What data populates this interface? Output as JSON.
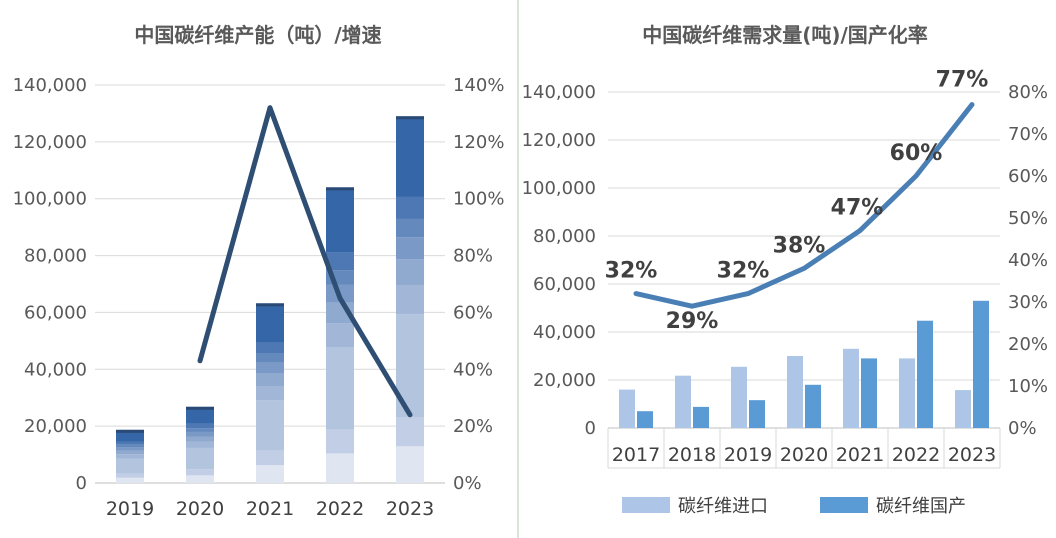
{
  "chart_data": [
    {
      "type": "bar",
      "title": "中国碳纤维产能（吨）/增速",
      "categories": [
        "2019",
        "2020",
        "2021",
        "2022",
        "2023"
      ],
      "series": [
        {
          "values": [
            18700,
            26800,
            63200,
            104000,
            129000
          ],
          "role": "bar-total"
        },
        {
          "values": [
            null,
            43,
            132,
            65,
            24
          ],
          "role": "line",
          "axis": "right"
        }
      ],
      "y_ticks": [
        "0",
        "20,000",
        "40,000",
        "60,000",
        "80,000",
        "100,000",
        "120,000",
        "140,000"
      ],
      "y2_ticks": [
        "0%",
        "20%",
        "40%",
        "60%",
        "80%",
        "100%",
        "120%",
        "140%"
      ],
      "ylim": [
        0,
        140000
      ],
      "y2lim": [
        0,
        140
      ],
      "grid": true,
      "legend": "none",
      "colors": {
        "line": "#2f4e74",
        "bar_dark": "#3566a8",
        "bar_light": "#ccd6ea"
      }
    },
    {
      "type": "bar",
      "title": "中国碳纤维需求量(吨)/国产化率",
      "categories": [
        "2017",
        "2018",
        "2019",
        "2020",
        "2021",
        "2022",
        "2023"
      ],
      "series": [
        {
          "name": "碳纤维进口",
          "values": [
            16000,
            21800,
            25500,
            30000,
            33000,
            29000,
            15800
          ],
          "color": "#adc5e7"
        },
        {
          "name": "碳纤维国产",
          "values": [
            7000,
            8800,
            11600,
            18000,
            29000,
            44700,
            53000
          ],
          "color": "#5b9bd5"
        },
        {
          "values": [
            32,
            29,
            32,
            38,
            47,
            60,
            77
          ],
          "role": "line",
          "axis": "right",
          "color": "#4a7fb5"
        }
      ],
      "data_labels": [
        "32%",
        "29%",
        "32%",
        "38%",
        "47%",
        "60%",
        "77%"
      ],
      "y_ticks": [
        "0",
        "20,000",
        "40,000",
        "60,000",
        "80,000",
        "100,000",
        "120,000",
        "140,000"
      ],
      "y2_ticks": [
        "0%",
        "10%",
        "20%",
        "30%",
        "40%",
        "50%",
        "60%",
        "70%",
        "80%"
      ],
      "ylim": [
        0,
        140000
      ],
      "y2lim": [
        0,
        80
      ],
      "grid": true,
      "legend": "bottom"
    }
  ]
}
